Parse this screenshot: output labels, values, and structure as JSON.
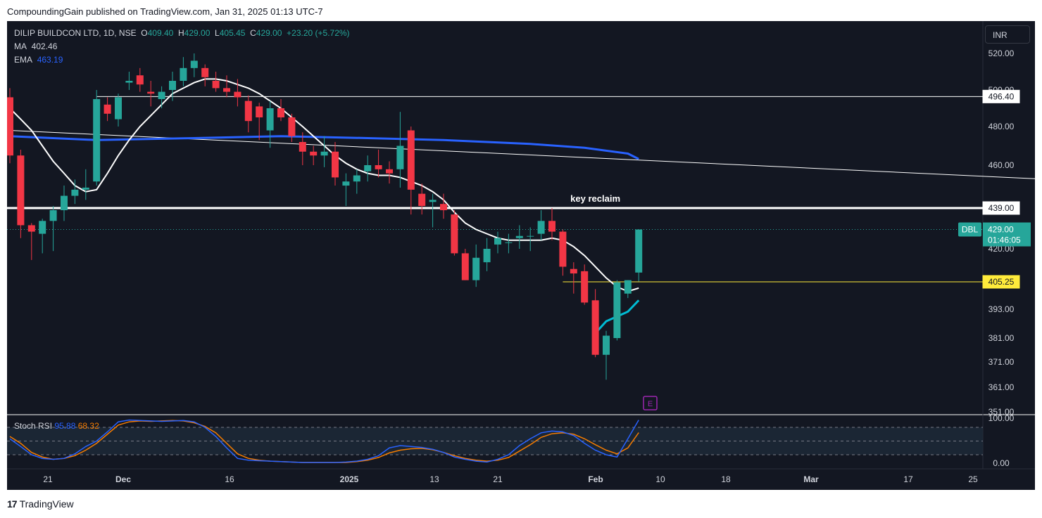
{
  "header": {
    "text": "CompoundingGain published on TradingView.com, Jan 31, 2025 01:13 UTC-7"
  },
  "footer": {
    "brand": "TradingView",
    "logo": "17"
  },
  "legend": {
    "symbol": "DILIP BUILDCON LTD, 1D, NSE",
    "o_label": "O",
    "o": "409.40",
    "h_label": "H",
    "h": "429.00",
    "l_label": "L",
    "l": "405.45",
    "c_label": "C",
    "c": "429.00",
    "change": "+23.20 (+5.72%)",
    "ma_label": "MA",
    "ma": "402.46",
    "ema_label": "EMA",
    "ema": "463.19"
  },
  "currency": "INR",
  "stoch": {
    "label": "Stoch RSI",
    "k": "95.88",
    "d": "68.32"
  },
  "chart_data": {
    "type": "candlestick",
    "symbol": "DBL",
    "price_axis": [
      "520.00",
      "500.00",
      "480.00",
      "460.00",
      "420.00",
      "393.00",
      "381.00",
      "371.00",
      "361.00",
      "351.00"
    ],
    "time_axis": [
      "21",
      "Dec",
      "16",
      "2025",
      "13",
      "21",
      "Feb",
      "10",
      "18",
      "Mar",
      "17",
      "25"
    ],
    "time_axis_bold": [
      "Dec",
      "2025",
      "Feb",
      "Mar"
    ],
    "price_labels": {
      "resistance": "496.40",
      "key_level": "439.00",
      "last": "429.00",
      "countdown": "01:46:05",
      "yellow_level": "405.25"
    },
    "annotation": "key reclaim",
    "earnings_marker": "E",
    "candles": [
      [
        496,
        501,
        461,
        465
      ],
      [
        465,
        468,
        425,
        431
      ],
      [
        431,
        432,
        415,
        428
      ],
      [
        427,
        434,
        418,
        433
      ],
      [
        433,
        440,
        419,
        438
      ],
      [
        438,
        450,
        433,
        445
      ],
      [
        445,
        453,
        441,
        448
      ],
      [
        448,
        458,
        443,
        449
      ],
      [
        452,
        500,
        450,
        495
      ],
      [
        492,
        496,
        483,
        487
      ],
      [
        484,
        498,
        480,
        496
      ],
      [
        504,
        510,
        500,
        505
      ],
      [
        508,
        512,
        499,
        503
      ],
      [
        499,
        505,
        491,
        498
      ],
      [
        495,
        502,
        490,
        499
      ],
      [
        500,
        510,
        494,
        505
      ],
      [
        505,
        518,
        502,
        512
      ],
      [
        512,
        520,
        507,
        516
      ],
      [
        512,
        514,
        502,
        507
      ],
      [
        505,
        510,
        499,
        501
      ],
      [
        501,
        508,
        496,
        499
      ],
      [
        499,
        506,
        491,
        496
      ],
      [
        494,
        497,
        477,
        483
      ],
      [
        491,
        493,
        473,
        485
      ],
      [
        478,
        494,
        469,
        490
      ],
      [
        490,
        495,
        483,
        485
      ],
      [
        485,
        487,
        472,
        475
      ],
      [
        472,
        477,
        460,
        467
      ],
      [
        467,
        470,
        460,
        465
      ],
      [
        465,
        475,
        459,
        467
      ],
      [
        467,
        472,
        450,
        454
      ],
      [
        450,
        456,
        440,
        452
      ],
      [
        452,
        458,
        446,
        455
      ],
      [
        457,
        465,
        452,
        460
      ],
      [
        460,
        468,
        454,
        458
      ],
      [
        458,
        462,
        451,
        456
      ],
      [
        458,
        488,
        449,
        470
      ],
      [
        478,
        480,
        436,
        448
      ],
      [
        446,
        451,
        436,
        440
      ],
      [
        442,
        446,
        430,
        443
      ],
      [
        441,
        446,
        434,
        438
      ],
      [
        436,
        438,
        417,
        418
      ],
      [
        418,
        420,
        406,
        406
      ],
      [
        406,
        422,
        403,
        416
      ],
      [
        414,
        425,
        410,
        420
      ],
      [
        422,
        428,
        418,
        425
      ],
      [
        423,
        427,
        418,
        423
      ],
      [
        425,
        431,
        420,
        426
      ],
      [
        426,
        430,
        419,
        426
      ],
      [
        427,
        438,
        424,
        433
      ],
      [
        433,
        439,
        424,
        428
      ],
      [
        428,
        429,
        408,
        412
      ],
      [
        411,
        414,
        400,
        409
      ],
      [
        410,
        413,
        395,
        396
      ],
      [
        397,
        402,
        373,
        374
      ],
      [
        374,
        384,
        364,
        382
      ],
      [
        381,
        406,
        380,
        405
      ],
      [
        400,
        406,
        398,
        406
      ],
      [
        409.4,
        429,
        405.45,
        429
      ]
    ],
    "ma": [
      490,
      484,
      478,
      470,
      462,
      456,
      450,
      447,
      448,
      456,
      465,
      473,
      480,
      486,
      492,
      498,
      501,
      504,
      506,
      506,
      505,
      503,
      501,
      498,
      494,
      490,
      485,
      480,
      475,
      470,
      465,
      461,
      458,
      456,
      455,
      455,
      454,
      452,
      450,
      447,
      443,
      437,
      432,
      429,
      427,
      425,
      424,
      424,
      424,
      424,
      425,
      424,
      421,
      417,
      412,
      407,
      403,
      401,
      402.46
    ],
    "ema_label_points": [
      [
        0,
        475
      ],
      [
        8,
        473
      ],
      [
        17,
        474
      ],
      [
        25,
        475
      ],
      [
        33,
        474
      ],
      [
        40,
        473
      ],
      [
        48,
        471
      ],
      [
        53,
        469
      ],
      [
        57,
        466
      ],
      [
        58,
        463.19
      ]
    ],
    "ema_cyan_points": [
      [
        54,
        383
      ],
      [
        55,
        388
      ],
      [
        56,
        390
      ],
      [
        57,
        392
      ],
      [
        58,
        397
      ]
    ],
    "trendline": {
      "from_idx": 0,
      "from_price": 478,
      "to_idx": 96,
      "to_price": 453
    },
    "stoch_k": [
      55,
      38,
      20,
      12,
      10,
      12,
      22,
      38,
      50,
      70,
      92,
      96,
      95,
      94,
      93,
      94,
      95,
      92,
      80,
      60,
      35,
      12,
      8,
      7,
      6,
      5,
      4,
      3,
      3,
      3,
      3,
      4,
      6,
      10,
      18,
      35,
      40,
      38,
      36,
      32,
      25,
      15,
      10,
      6,
      4,
      10,
      20,
      40,
      55,
      68,
      72,
      70,
      62,
      45,
      30,
      20,
      15,
      55,
      95.88
    ],
    "stoch_d": [
      60,
      45,
      25,
      15,
      10,
      12,
      18,
      30,
      45,
      65,
      85,
      92,
      94,
      93,
      94,
      95,
      94,
      90,
      82,
      68,
      45,
      22,
      12,
      8,
      6,
      5,
      4,
      3,
      3,
      3,
      3,
      3,
      5,
      8,
      14,
      24,
      30,
      33,
      34,
      31,
      25,
      18,
      12,
      8,
      6,
      8,
      14,
      28,
      42,
      58,
      66,
      68,
      65,
      55,
      42,
      30,
      22,
      35,
      68.32
    ],
    "stoch_axis": [
      "100.00",
      "0.00"
    ],
    "colors": {
      "background": "#131722",
      "up": "#26a69a",
      "down": "#f23645",
      "ma": "#ffffff",
      "ema": "#2962ff",
      "ema_recent": "#00bcd4",
      "stoch_k": "#2962ff",
      "stoch_d": "#f57c00",
      "yellow": "#ffeb3b",
      "earnings": "#9c27b0"
    }
  }
}
